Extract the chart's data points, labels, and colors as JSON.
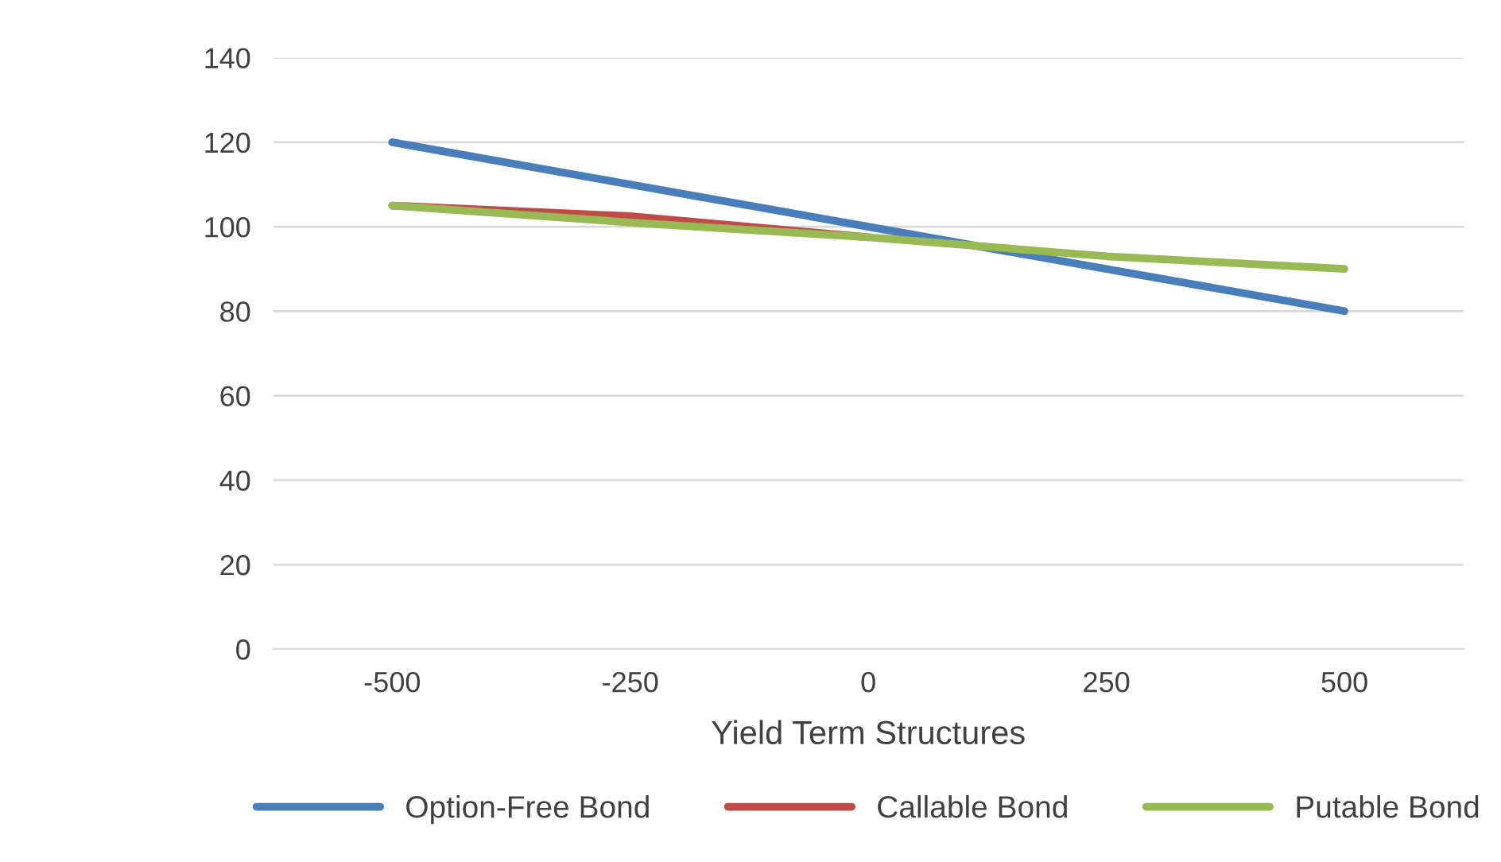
{
  "chart_data": {
    "type": "line",
    "xlabel": "Yield Term Structures",
    "x": [
      -500,
      -250,
      0,
      250,
      500
    ],
    "series": [
      {
        "name": "Option-Free Bond",
        "color": "#4a7ebb",
        "values": [
          120,
          110,
          100,
          90,
          80
        ]
      },
      {
        "name": "Callable Bond",
        "color": "#be4b48",
        "values": [
          105,
          102.5,
          97.5,
          null,
          null
        ]
      },
      {
        "name": "Putable Bond",
        "color": "#98b954",
        "values": [
          105,
          101,
          97.5,
          93,
          90
        ]
      }
    ],
    "xlim": [
      -625,
      625
    ],
    "xticks": [
      -500,
      -250,
      0,
      250,
      500
    ],
    "ylim": [
      0,
      140
    ],
    "yticks": [
      0,
      20,
      40,
      60,
      80,
      100,
      120,
      140
    ],
    "grid": "y",
    "legend": "bottom",
    "marker": "none",
    "line_style": "solid"
  }
}
